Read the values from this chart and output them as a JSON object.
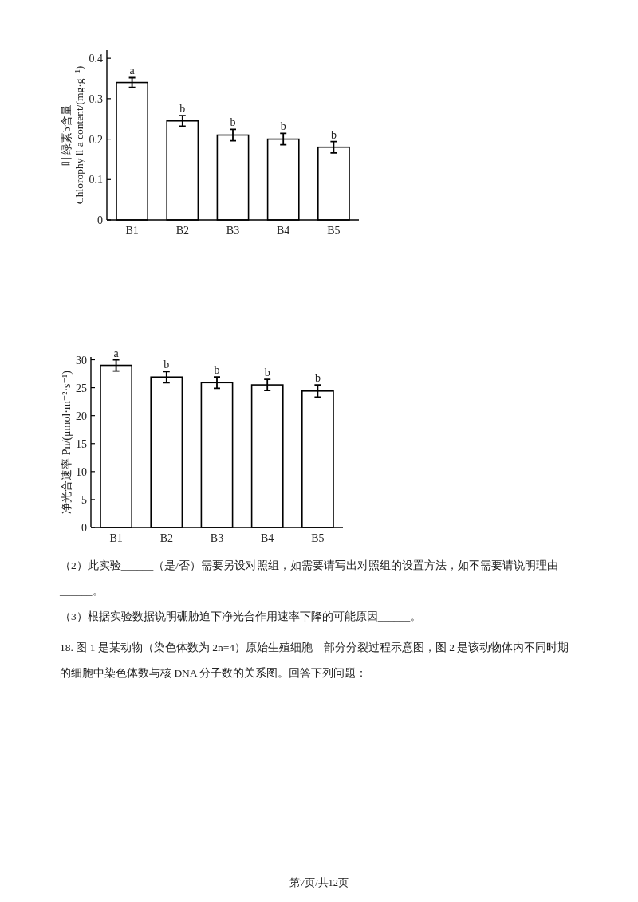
{
  "chart_data": [
    {
      "type": "bar",
      "ylabel": "叶绿素b含量\nChlorophy ll a content/(mg·g⁻¹)",
      "categories": [
        "B1",
        "B2",
        "B3",
        "B4",
        "B5"
      ],
      "values": [
        0.34,
        0.245,
        0.21,
        0.2,
        0.18
      ],
      "errors": [
        0.012,
        0.013,
        0.014,
        0.014,
        0.014
      ],
      "color": "#ffffff",
      "ylim": [
        0,
        0.42
      ],
      "yticks": [
        0,
        0.1,
        0.2,
        0.3,
        0.4
      ],
      "annotations": [
        {
          "text": "a",
          "x": "B1",
          "y": 0.352
        },
        {
          "text": "b",
          "x": "B2",
          "y": 0.258
        },
        {
          "text": "b",
          "x": "B3",
          "y": 0.224
        },
        {
          "text": "b",
          "x": "B4",
          "y": 0.214
        },
        {
          "text": "b",
          "x": "B5",
          "y": 0.194
        }
      ]
    },
    {
      "type": "bar",
      "ylabel": "净光合速率  Pn/(μmol·m⁻²·s⁻¹)",
      "categories": [
        "B1",
        "B2",
        "B3",
        "B4",
        "B5"
      ],
      "values": [
        29.0,
        26.9,
        25.9,
        25.5,
        24.4
      ],
      "errors": [
        1.0,
        1.0,
        1.0,
        1.0,
        1.1
      ],
      "color": "#ffffff",
      "ylim": [
        0,
        30.5
      ],
      "yticks": [
        0,
        5,
        10,
        15,
        20,
        25,
        30
      ],
      "annotations": [
        {
          "text": "a",
          "x": "B1",
          "y": 30.0
        },
        {
          "text": "b",
          "x": "B2",
          "y": 27.9
        },
        {
          "text": "b",
          "x": "B3",
          "y": 26.9
        },
        {
          "text": "b",
          "x": "B4",
          "y": 26.5
        },
        {
          "text": "b",
          "x": "B5",
          "y": 25.5
        }
      ]
    },
    {
      "type": "other",
      "annotations": [
        "（2）此实验______（是/否）需要另设对照组，如需要请写出对照组的设置方法，如不需要请说明理由",
        "______。",
        "（3）根据实验数据说明硼胁迫下净光合作用速率下降的可能原因______。",
        "18. 图 1 是某动物（染色体数为 2n=4）原始生殖细胞　部分分裂过程示意图，图 2 是该动物体内不同时期",
        "的细胞中染色体数与核 DNA 分子数的关系图。回答下列问题：",
        "第7页/共12页"
      ]
    }
  ]
}
